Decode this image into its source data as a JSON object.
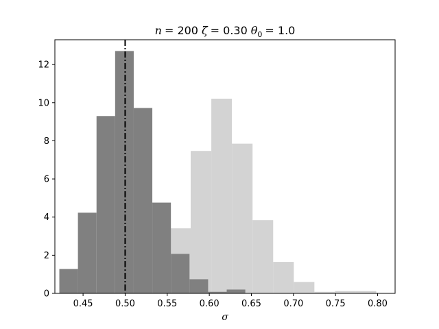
{
  "chart_data": {
    "type": "bar",
    "title": "n = 200 ζ = 0.30 θ0 = 1.0",
    "title_parts": {
      "n_var": "n",
      "n_val": "= 200",
      "zeta_var": "ζ",
      "zeta_val": "= 0.30",
      "theta_var": "θ",
      "theta_sub": "0",
      "theta_val": "= 1.0"
    },
    "xlabel": "σ",
    "ylabel": "",
    "xlim": [
      0.4165,
      0.8208
    ],
    "ylim": [
      0,
      13.3
    ],
    "xticks": [
      0.45,
      0.5,
      0.55,
      0.6,
      0.65,
      0.7,
      0.75,
      0.8
    ],
    "xtick_labels": [
      "0.45",
      "0.50",
      "0.55",
      "0.60",
      "0.65",
      "0.70",
      "0.75",
      "0.80"
    ],
    "yticks": [
      0,
      2,
      4,
      6,
      8,
      10,
      12
    ],
    "ytick_labels": [
      "0",
      "2",
      "4",
      "6",
      "8",
      "10",
      "12"
    ],
    "grid": false,
    "series": [
      {
        "color": "#d3d3d3",
        "bin_edges": [
          0.5534,
          0.5779,
          0.6024,
          0.6269,
          0.6514,
          0.6759,
          0.7004,
          0.7249,
          0.7494,
          0.7739,
          0.7984
        ],
        "values": [
          3.41,
          7.47,
          10.21,
          7.85,
          3.84,
          1.65,
          0.6,
          0.08,
          0.12,
          0.12
        ]
      },
      {
        "color": "#808080",
        "bin_edges": [
          0.4218,
          0.4439,
          0.466,
          0.4881,
          0.5102,
          0.5323,
          0.5544,
          0.5765,
          0.5986,
          0.6207,
          0.6428
        ],
        "values": [
          1.28,
          4.23,
          9.3,
          12.71,
          9.72,
          4.76,
          2.07,
          0.74,
          0.08,
          0.2
        ]
      }
    ],
    "reference_line": {
      "x": 0.5,
      "style": "dash-dot",
      "color": "#000000"
    }
  }
}
